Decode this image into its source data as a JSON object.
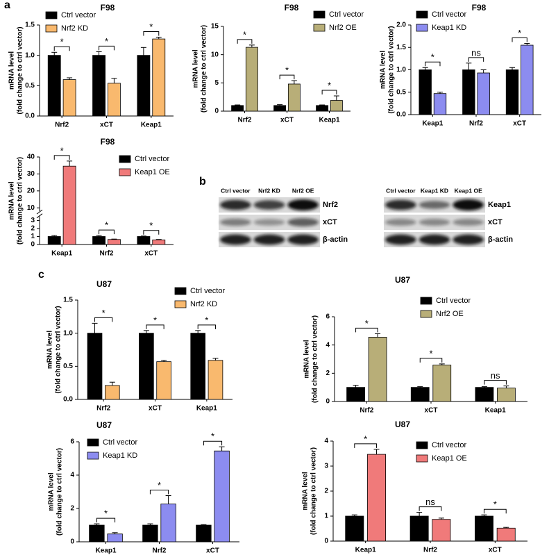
{
  "panel_labels": [
    "a",
    "b",
    "c"
  ],
  "chart_data": [
    {
      "type": "bar",
      "title": "F98",
      "ylabel": [
        "mRNA level",
        "(fold change to ctrl vector)"
      ],
      "categories": [
        "Nrf2",
        "xCT",
        "Keap1"
      ],
      "series": [
        {
          "name": "Ctrl vector",
          "color": "#000000",
          "values": [
            1.0,
            1.0,
            1.0
          ],
          "errors": [
            0.05,
            0.06,
            0.13
          ]
        },
        {
          "name": "Nrf2 KD",
          "color": "#f9b96e",
          "values": [
            0.6,
            0.54,
            1.27
          ],
          "errors": [
            0.03,
            0.08,
            0.03
          ]
        }
      ],
      "ylim": [
        0,
        1.5
      ],
      "yticks": [
        {
          "value": 0,
          "label": "0.0"
        },
        {
          "value": 0.5,
          "label": "0.5"
        },
        {
          "value": 1,
          "label": "1.0"
        },
        {
          "value": 1.5,
          "label": "1.5"
        }
      ],
      "significance": [
        "*",
        "*",
        "*"
      ]
    },
    {
      "type": "bar",
      "title": "F98",
      "ylabel": [
        "mRNA level",
        "(fold change to ctrl vector)"
      ],
      "categories": [
        "Nrf2",
        "xCT",
        "Keap1"
      ],
      "series": [
        {
          "name": "Ctrl vector",
          "color": "#000000",
          "values": [
            1,
            1,
            1
          ],
          "errors": [
            0.1,
            0.15,
            0.1
          ]
        },
        {
          "name": "Nrf2 OE",
          "color": "#b8ae78",
          "values": [
            11.3,
            4.8,
            1.9
          ],
          "errors": [
            0.4,
            0.6,
            0.8
          ]
        }
      ],
      "ylim": [
        0,
        15
      ],
      "yticks": [
        0,
        5,
        10,
        15
      ],
      "significance": [
        "*",
        "*",
        "*"
      ]
    },
    {
      "type": "bar",
      "title": "F98",
      "ylabel": [
        "mRNA level",
        "(fold change to ctrl vector)"
      ],
      "categories": [
        "Keap1",
        "Nrf2",
        "xCT"
      ],
      "series": [
        {
          "name": "Ctrl vector",
          "color": "#000000",
          "values": [
            1,
            1,
            1
          ],
          "errors": [
            0.05,
            0.15,
            0.05
          ]
        },
        {
          "name": "Keap1 KD",
          "color": "#8c8cf0",
          "values": [
            0.47,
            0.93,
            1.55
          ],
          "errors": [
            0.03,
            0.07,
            0.04
          ]
        }
      ],
      "ylim": [
        0,
        2
      ],
      "yticks": [
        {
          "value": 0,
          "label": "0.0"
        },
        {
          "value": 0.5,
          "label": "0.5"
        },
        {
          "value": 1,
          "label": "1.0"
        },
        {
          "value": 1.5,
          "label": "1.5"
        },
        {
          "value": 2,
          "label": "2.0"
        }
      ],
      "significance": [
        "*",
        "ns",
        "*"
      ]
    },
    {
      "type": "bar",
      "title": "F98",
      "ylabel": [
        "mRNA level",
        "(fold change to ctrl vector)"
      ],
      "categories": [
        "Keap1",
        "Nrf2",
        "xCT"
      ],
      "series": [
        {
          "name": "Ctrl vector",
          "color": "#000000",
          "values": [
            1,
            1,
            1
          ],
          "errors": [
            0.12,
            0.12,
            0.06
          ]
        },
        {
          "name": "Keap1 OE",
          "color": "#f07a7a",
          "values": [
            34.6,
            0.63,
            0.58
          ],
          "errors": [
            3,
            0.05,
            0.05
          ]
        }
      ],
      "ylim": [
        0,
        40
      ],
      "ybreak": [
        3.5,
        8
      ],
      "yticks": [
        0,
        1,
        2,
        3,
        10,
        20,
        30,
        40
      ],
      "significance": [
        "*",
        "*",
        "*"
      ]
    },
    {
      "type": "bar",
      "title": "U87",
      "ylabel": [
        "mRNA level",
        "(fold change to ctrl vector)"
      ],
      "categories": [
        "Nrf2",
        "xCT",
        "Keap1"
      ],
      "series": [
        {
          "name": "Ctrl vector",
          "color": "#000000",
          "values": [
            1,
            1,
            1
          ],
          "errors": [
            0.15,
            0.04,
            0.04
          ]
        },
        {
          "name": "Nrf2 KD",
          "color": "#f9b96e",
          "values": [
            0.21,
            0.57,
            0.59
          ],
          "errors": [
            0.05,
            0.02,
            0.03
          ]
        }
      ],
      "ylim": [
        0,
        1.5
      ],
      "yticks": [
        {
          "value": 0,
          "label": "0.0"
        },
        {
          "value": 0.5,
          "label": "0.5"
        },
        {
          "value": 1,
          "label": "1.0"
        },
        {
          "value": 1.5,
          "label": "1.5"
        }
      ],
      "significance": [
        "*",
        "*",
        "*"
      ]
    },
    {
      "type": "bar",
      "title": "U87",
      "ylabel": [
        "mRNA level",
        "(fold change to ctrl vector)"
      ],
      "categories": [
        "Nrf2",
        "xCT",
        "Keap1"
      ],
      "series": [
        {
          "name": "Ctrl vector",
          "color": "#000000",
          "values": [
            1,
            1,
            1
          ],
          "errors": [
            0.15,
            0.05,
            0.05
          ]
        },
        {
          "name": "Nrf2 OE",
          "color": "#b8ae78",
          "values": [
            4.55,
            2.58,
            0.95
          ],
          "errors": [
            0.25,
            0.08,
            0.15
          ]
        }
      ],
      "ylim": [
        0,
        6
      ],
      "yticks": [
        0,
        2,
        4,
        6
      ],
      "significance": [
        "*",
        "*",
        "ns"
      ]
    },
    {
      "type": "bar",
      "title": "U87",
      "ylabel": [
        "mRNA level",
        "(fold change to ctrl vector)"
      ],
      "categories": [
        "Keap1",
        "Nrf2",
        "xCT"
      ],
      "series": [
        {
          "name": "Ctrl vector",
          "color": "#000000",
          "values": [
            1,
            1,
            1
          ],
          "errors": [
            0.08,
            0.08,
            0.03
          ]
        },
        {
          "name": "Keap1 KD",
          "color": "#8c8cf0",
          "values": [
            0.47,
            2.27,
            5.45
          ],
          "errors": [
            0.08,
            0.5,
            0.25
          ]
        }
      ],
      "ylim": [
        0,
        6
      ],
      "yticks": [
        0,
        2,
        4,
        6
      ],
      "significance": [
        "*",
        "*",
        "*"
      ]
    },
    {
      "type": "bar",
      "title": "U87",
      "ylabel": [
        "mRNA level",
        "(fold change to ctrl vector)"
      ],
      "categories": [
        "Keap1",
        "Nrf2",
        "xCT"
      ],
      "series": [
        {
          "name": "Ctrl vector",
          "color": "#000000",
          "values": [
            1,
            1,
            1
          ],
          "errors": [
            0.05,
            0.15,
            0.05
          ]
        },
        {
          "name": "Keap1 OE",
          "color": "#f07a7a",
          "values": [
            3.47,
            0.87,
            0.52
          ],
          "errors": [
            0.2,
            0.05,
            0.03
          ]
        }
      ],
      "ylim": [
        0,
        4
      ],
      "yticks": [
        0,
        1,
        2,
        3,
        4
      ],
      "significance": [
        "*",
        "ns",
        "*"
      ]
    }
  ],
  "blots": [
    {
      "lanes": [
        "Ctrl vector",
        "Nrf2 KD",
        "Nrf2 OE"
      ],
      "bands": [
        "Nrf2",
        "xCT",
        "β-actin"
      ]
    },
    {
      "lanes": [
        "Ctrl vector",
        "Keap1 KD",
        "Keap1 OE"
      ],
      "bands": [
        "Keap1",
        "xCT",
        "β-actin"
      ]
    }
  ]
}
